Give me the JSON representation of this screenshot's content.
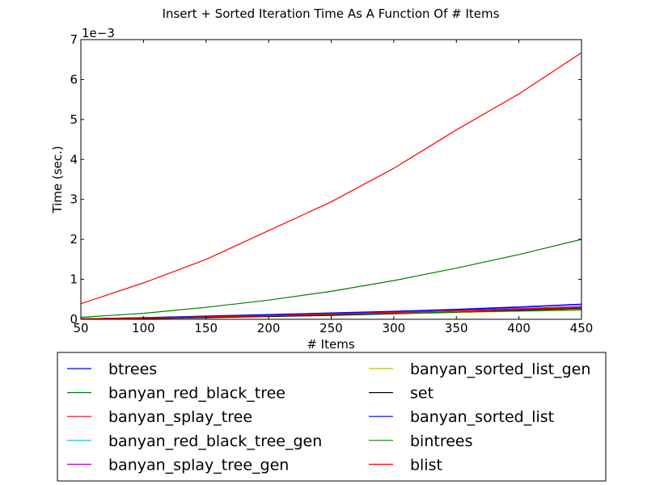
{
  "chart_data": {
    "type": "line",
    "title": "Insert + Sorted Iteration Time As A Function Of # Items",
    "xlabel": "# Items",
    "ylabel": "Time (sec.)",
    "y_offset_label": "1e−3",
    "xlim": [
      50,
      450
    ],
    "ylim": [
      0,
      0.007
    ],
    "x_ticks": [
      50,
      100,
      150,
      200,
      250,
      300,
      350,
      400,
      450
    ],
    "y_ticks": [
      0,
      0.001,
      0.002,
      0.003,
      0.004,
      0.005,
      0.006,
      0.007
    ],
    "y_tick_labels": [
      "0",
      "1",
      "2",
      "3",
      "4",
      "5",
      "6",
      "7"
    ],
    "grid": false,
    "legend_placement": "below-plot",
    "x": [
      50,
      100,
      150,
      200,
      250,
      300,
      350,
      400,
      450
    ],
    "series": [
      {
        "name": "btrees",
        "color": "#0000ff",
        "values": [
          1e-05,
          4e-05,
          7e-05,
          0.00011,
          0.00015,
          0.00019,
          0.00024,
          0.0003,
          0.00037
        ]
      },
      {
        "name": "banyan_red_black_tree",
        "color": "#008000",
        "values": [
          5e-05,
          0.00015,
          0.0003,
          0.00048,
          0.0007,
          0.00097,
          0.00128,
          0.00162,
          0.002
        ]
      },
      {
        "name": "banyan_splay_tree",
        "color": "#ff0000",
        "values": [
          0.00039,
          0.00091,
          0.0015,
          0.00222,
          0.00294,
          0.00378,
          0.00474,
          0.00564,
          0.00667
        ]
      },
      {
        "name": "banyan_red_black_tree_gen",
        "color": "#00bfbf",
        "values": [
          1e-05,
          3e-05,
          6e-05,
          9e-05,
          0.00012,
          0.00015,
          0.00018,
          0.00021,
          0.00025
        ]
      },
      {
        "name": "banyan_splay_tree_gen",
        "color": "#bf00bf",
        "values": [
          1e-05,
          4e-05,
          7e-05,
          0.0001,
          0.00014,
          0.00018,
          0.00022,
          0.00027,
          0.00032
        ]
      },
      {
        "name": "banyan_sorted_list_gen",
        "color": "#bfbf00",
        "values": [
          1e-05,
          2e-05,
          5e-05,
          8e-05,
          0.00011,
          0.00014,
          0.00017,
          0.0002,
          0.00023
        ]
      },
      {
        "name": "set",
        "color": "#000000",
        "values": [
          0.0,
          2e-05,
          4e-05,
          7e-05,
          0.0001,
          0.00014,
          0.00018,
          0.00023,
          0.00028
        ]
      },
      {
        "name": "banyan_sorted_list",
        "color": "#0000ff",
        "values": [
          1e-05,
          4e-05,
          8e-05,
          0.00012,
          0.00016,
          0.0002,
          0.00025,
          0.00031,
          0.00038
        ]
      },
      {
        "name": "bintrees",
        "color": "#008000",
        "values": [
          1e-05,
          3e-05,
          6e-05,
          9e-05,
          0.00012,
          0.00015,
          0.00018,
          0.00021,
          0.00024
        ]
      },
      {
        "name": "blist",
        "color": "#ff0000",
        "values": [
          1e-05,
          3e-05,
          6e-05,
          9e-05,
          0.00013,
          0.00017,
          0.00021,
          0.00025,
          0.0003
        ]
      }
    ]
  }
}
